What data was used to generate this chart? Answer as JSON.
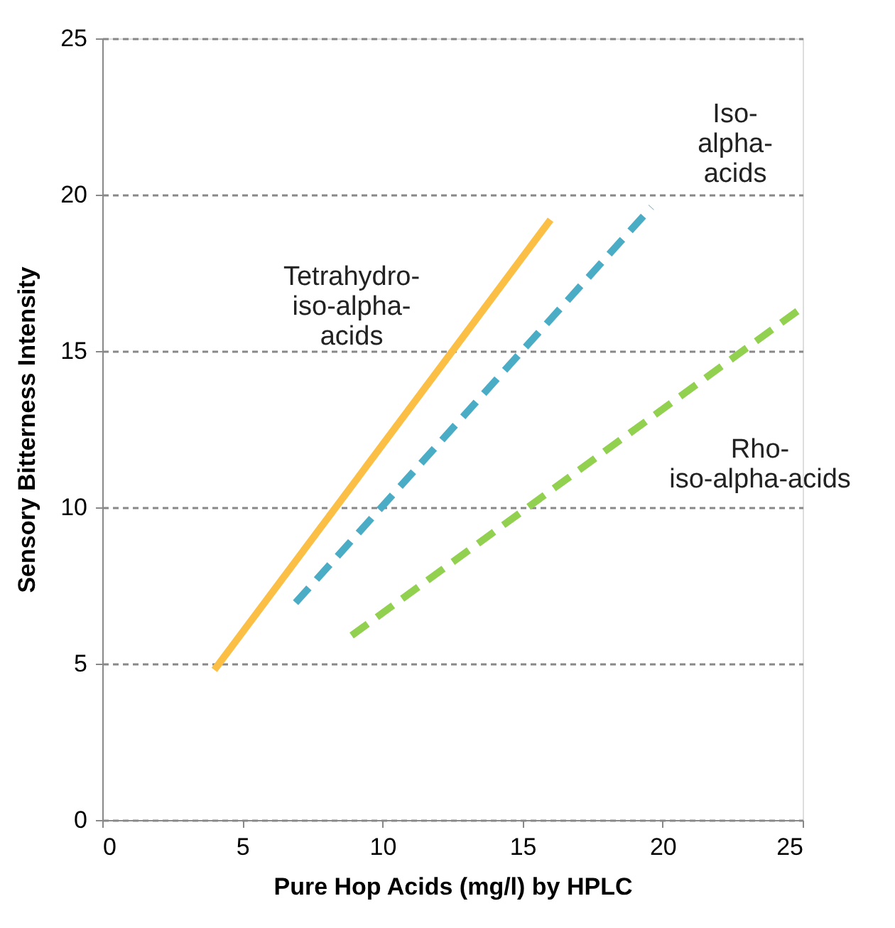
{
  "chart_data": {
    "type": "line",
    "xlabel": "Pure Hop Acids (mg/l) by HPLC",
    "ylabel": "Sensory Bitterness Intensity",
    "xlim": [
      0,
      25
    ],
    "xticks": [
      0,
      5,
      10,
      15,
      20,
      25
    ],
    "ylim": [
      0,
      25
    ],
    "yticks": [
      0,
      5,
      10,
      15,
      20,
      25
    ],
    "grid": "y",
    "series": [
      {
        "name": "Tetrahydro-\niso-alpha-\nacids",
        "color": "#fbbf45",
        "line_style": "solid",
        "x": [
          4,
          16
        ],
        "values": [
          4.8,
          19.2
        ]
      },
      {
        "name": "Iso-\nalpha-\nacids",
        "color": "#4bacc6",
        "line_style": "dashed",
        "x": [
          6.9,
          19.6
        ],
        "values": [
          6.95,
          19.6
        ]
      },
      {
        "name": "Rho-\niso-alpha-acids",
        "color": "#92d050",
        "line_style": "dashed",
        "x": [
          8.9,
          25
        ],
        "values": [
          5.9,
          16.4
        ]
      }
    ]
  }
}
